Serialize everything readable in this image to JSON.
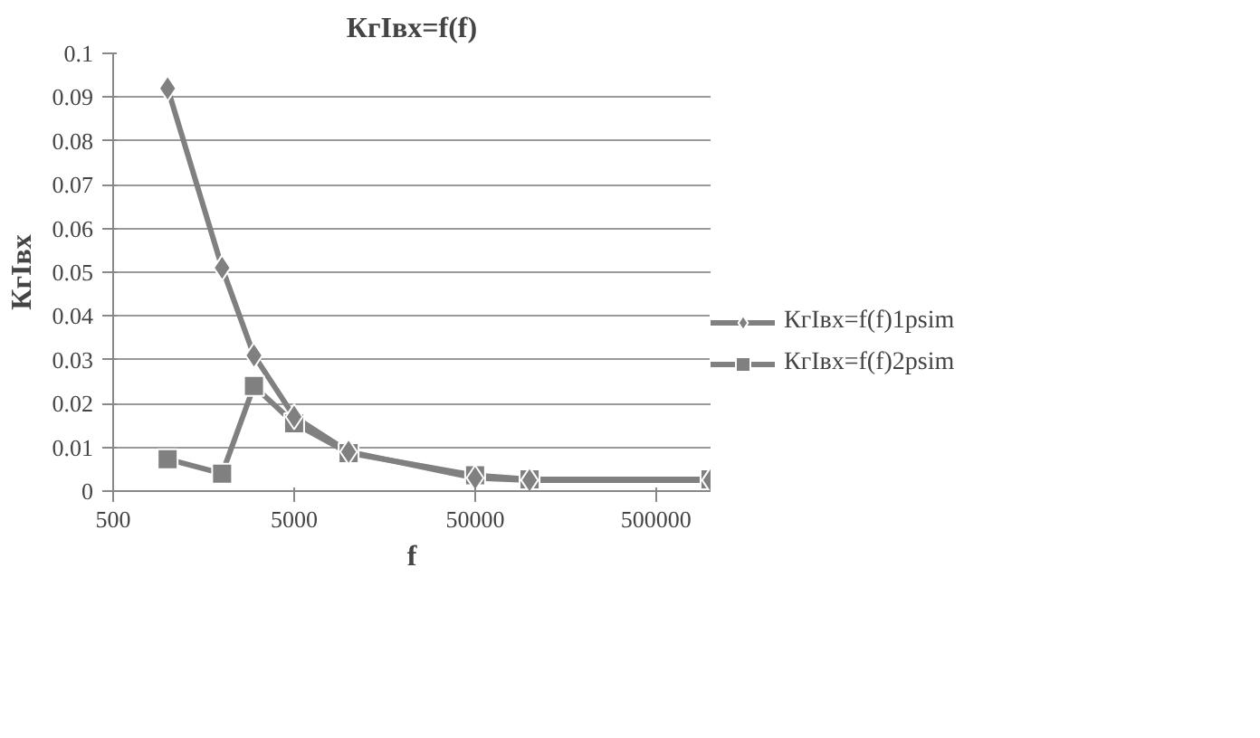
{
  "chart_data": {
    "type": "line",
    "title": "КгIвх=f(f)",
    "xlabel": "f",
    "ylabel": "КгIвх",
    "x": [
      1000,
      2000,
      3000,
      5000,
      10000,
      50000,
      100000,
      1000000
    ],
    "series": [
      {
        "name": "КгIвх=f(f)1psim",
        "color": "#808080",
        "marker": "diamond",
        "values": [
          0.092,
          0.051,
          0.031,
          0.017,
          0.009,
          0.003,
          0.0025,
          0.0025
        ]
      },
      {
        "name": "КгIвх=f(f)2psim",
        "color": "#808080",
        "marker": "square",
        "values": [
          0.0073,
          0.004,
          0.024,
          0.0155,
          0.0087,
          0.0036,
          0.0027,
          0.0027
        ]
      }
    ],
    "log": "x",
    "xlim": [
      500,
      1000000
    ],
    "xticks": [
      500,
      5000,
      50000,
      500000
    ],
    "ylim": [
      0,
      0.1
    ],
    "yticks": [
      0,
      0.01,
      0.02,
      0.03,
      0.04,
      0.05,
      0.06,
      0.07,
      0.08,
      0.09,
      0.1
    ],
    "grid": "y",
    "legend": "right",
    "line_style": "solid"
  }
}
